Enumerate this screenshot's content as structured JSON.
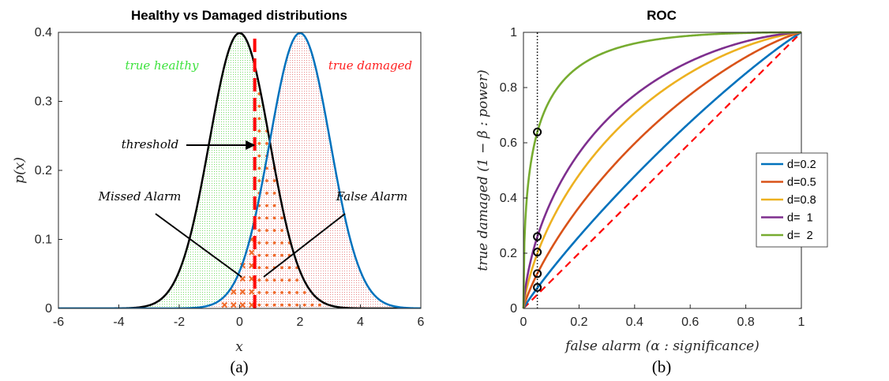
{
  "chart_data": [
    {
      "type": "area",
      "title": "Healthy vs Damaged distributions",
      "xlabel": "x",
      "ylabel": "p(x)",
      "xlim": [
        -6,
        6
      ],
      "ylim": [
        0,
        0.4
      ],
      "xticks": [
        "-6",
        "-4",
        "-2",
        "0",
        "2",
        "4",
        "6"
      ],
      "yticks": [
        "0",
        "0.1",
        "0.2",
        "0.3",
        "0.4"
      ],
      "series": [
        {
          "name": "",
          "distribution": "normal",
          "mean": 0,
          "sd": 1,
          "color": "#000000"
        },
        {
          "name": "",
          "distribution": "normal",
          "mean": 2,
          "sd": 1,
          "color": "#0072BD"
        }
      ],
      "threshold": 0.5,
      "threshold_color": "#FF0000",
      "annotations": {
        "healthy": "true healthy",
        "damaged": "true damaged",
        "threshold": "threshold",
        "missed": "Missed Alarm",
        "false_alarm": "False Alarm"
      },
      "panel_label": "(a)"
    },
    {
      "type": "line",
      "title": "ROC",
      "xlabel": "false alarm (α : significance)",
      "ylabel": "true damaged (1 − β : power)",
      "xlim": [
        0,
        1
      ],
      "ylim": [
        0,
        1
      ],
      "xticks": [
        "0",
        "0.2",
        "0.4",
        "0.6",
        "0.8",
        "1"
      ],
      "yticks": [
        "0",
        "0.2",
        "0.4",
        "0.6",
        "0.8",
        "1"
      ],
      "legend_position": "right",
      "alpha_marker": 0.05,
      "series": [
        {
          "name": "d=0.2",
          "d": 0.2,
          "color": "#0072BD",
          "marker_y": 0.076
        },
        {
          "name": "d=0.5",
          "d": 0.5,
          "color": "#D95319",
          "marker_y": 0.126
        },
        {
          "name": "d=0.8",
          "d": 0.8,
          "color": "#EDB120",
          "marker_y": 0.204
        },
        {
          "name": "d=  1",
          "d": 1.0,
          "color": "#7E2F8E",
          "marker_y": 0.26
        },
        {
          "name": "d=  2",
          "d": 2.0,
          "color": "#77AC30",
          "marker_y": 0.639
        }
      ],
      "chance_line": {
        "x": [
          0,
          1
        ],
        "y": [
          0,
          1
        ],
        "color": "#FF0000"
      },
      "panel_label": "(b)"
    }
  ]
}
